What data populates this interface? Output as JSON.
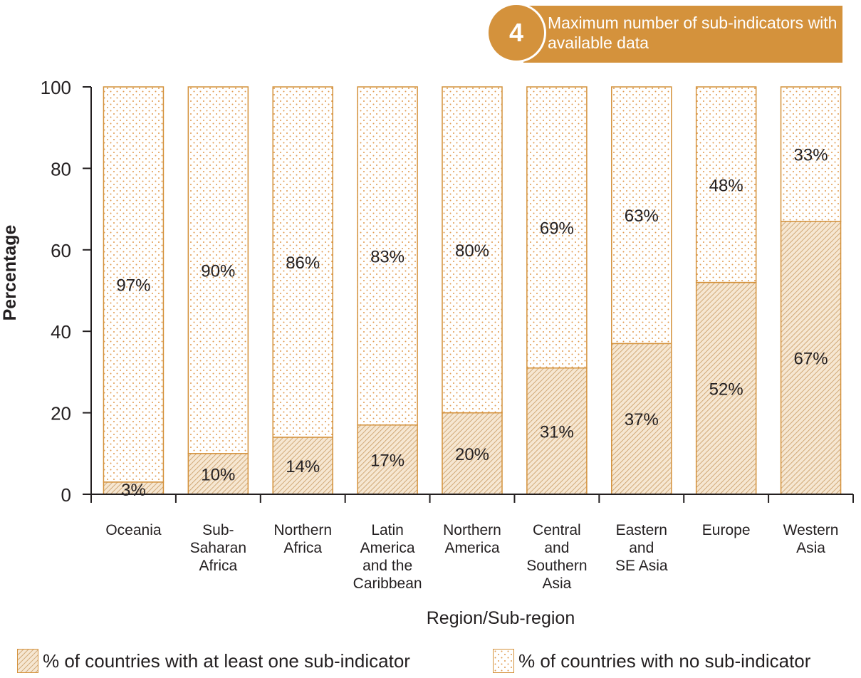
{
  "badge": {
    "number": "4",
    "text": "Maximum number of sub-indicators with available data"
  },
  "colors": {
    "accent": "#d4923c",
    "hatch": "#c89a62",
    "dots": "#e09a4e"
  },
  "chart_data": {
    "type": "bar",
    "stacked": true,
    "xlabel": "Region/Sub-region",
    "ylabel": "Percentage",
    "ylim": [
      0,
      100
    ],
    "yticks": [
      0,
      20,
      40,
      60,
      80,
      100
    ],
    "grid": false,
    "categories": [
      [
        "Oceania"
      ],
      [
        "Sub-",
        "Saharan",
        "Africa"
      ],
      [
        "Northern",
        "Africa"
      ],
      [
        "Latin",
        "America",
        "and the",
        "Caribbean"
      ],
      [
        "Northern",
        "America"
      ],
      [
        "Central",
        "and",
        "Southern",
        "Asia"
      ],
      [
        "Eastern",
        "and",
        "SE Asia"
      ],
      [
        "Europe"
      ],
      [
        "Western",
        "Asia"
      ]
    ],
    "series": [
      {
        "name": "% of countries with at least one sub-indicator",
        "pattern": "hatch",
        "values": [
          3,
          10,
          14,
          17,
          20,
          31,
          37,
          52,
          67
        ],
        "labels": [
          "3%",
          "10%",
          "14%",
          "17%",
          "20%",
          "31%",
          "37%",
          "52%",
          "67%"
        ]
      },
      {
        "name": "% of countries with no sub-indicator",
        "pattern": "dots",
        "values": [
          97,
          90,
          86,
          83,
          80,
          69,
          63,
          48,
          33
        ],
        "labels": [
          "97%",
          "90%",
          "86%",
          "83%",
          "80%",
          "69%",
          "63%",
          "48%",
          "33%"
        ]
      }
    ],
    "legend_position": "bottom"
  }
}
